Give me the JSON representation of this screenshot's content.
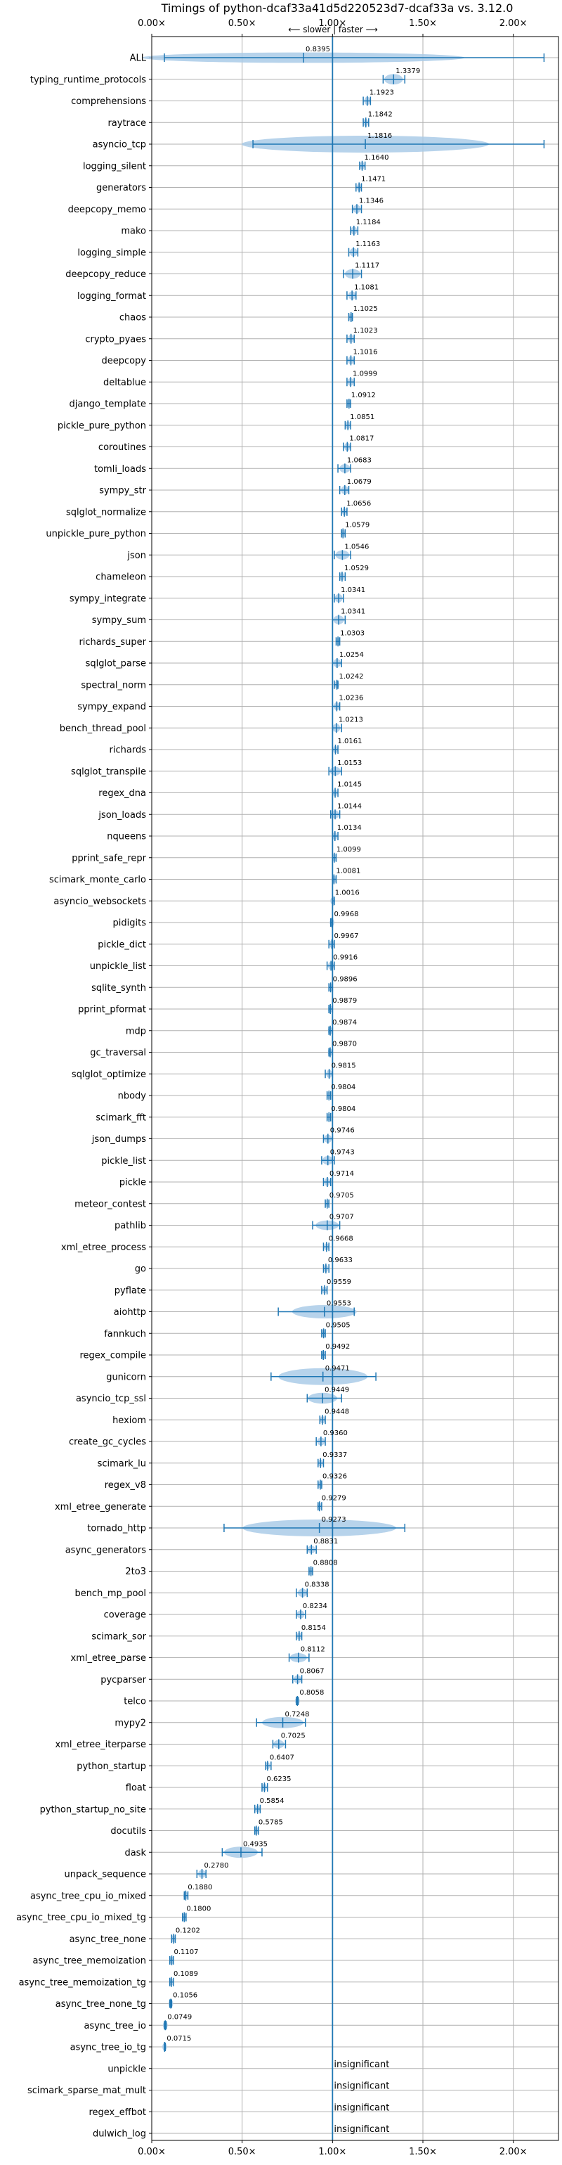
{
  "chart_data": {
    "type": "violin",
    "title": "Timings of python-dcaf33a41d5d220523d7-dcaf33a vs. 3.12.0",
    "subtitle": "⟵ slower | faster ⟶",
    "xlim": [
      0,
      2.25
    ],
    "xticks": [
      0,
      0.5,
      1.0,
      1.5,
      2.0
    ],
    "xtick_labels": [
      "0.00×",
      "0.50×",
      "1.00×",
      "1.50×",
      "2.00×"
    ],
    "reference_line": 1.0,
    "grid": true,
    "colors": {
      "violin": "#aacbe8",
      "line": "#1f77b4",
      "grid": "#b0b0b0",
      "median": "#d62728"
    },
    "benchmarks": [
      {
        "name": "ALL",
        "value": 0.8395,
        "label": "0.8395",
        "min": 0.07,
        "max": 2.17,
        "spread": 0.08
      },
      {
        "name": "typing_runtime_protocols",
        "value": 1.3379,
        "label": "1.3379",
        "min": 1.28,
        "max": 1.4,
        "spread": 0.08
      },
      {
        "name": "comprehensions",
        "value": 1.1923,
        "label": "1.1923",
        "min": 1.17,
        "max": 1.21,
        "spread": 0.03
      },
      {
        "name": "raytrace",
        "value": 1.1842,
        "label": "1.1842",
        "min": 1.17,
        "max": 1.2,
        "spread": 0.02
      },
      {
        "name": "asyncio_tcp",
        "value": 1.1816,
        "label": "1.1816",
        "min": 0.56,
        "max": 2.17,
        "spread": 0.55
      },
      {
        "name": "logging_silent",
        "value": 1.164,
        "label": "1.1640",
        "min": 1.15,
        "max": 1.18,
        "spread": 0.02
      },
      {
        "name": "generators",
        "value": 1.1471,
        "label": "1.1471",
        "min": 1.13,
        "max": 1.16,
        "spread": 0.02
      },
      {
        "name": "deepcopy_memo",
        "value": 1.1346,
        "label": "1.1346",
        "min": 1.11,
        "max": 1.16,
        "spread": 0.03
      },
      {
        "name": "mako",
        "value": 1.1184,
        "label": "1.1184",
        "min": 1.1,
        "max": 1.14,
        "spread": 0.03
      },
      {
        "name": "logging_simple",
        "value": 1.1163,
        "label": "1.1163",
        "min": 1.09,
        "max": 1.14,
        "spread": 0.03
      },
      {
        "name": "deepcopy_reduce",
        "value": 1.1117,
        "label": "1.1117",
        "min": 1.06,
        "max": 1.16,
        "spread": 0.06
      },
      {
        "name": "logging_format",
        "value": 1.1081,
        "label": "1.1081",
        "min": 1.08,
        "max": 1.13,
        "spread": 0.03
      },
      {
        "name": "chaos",
        "value": 1.1025,
        "label": "1.1025",
        "min": 1.09,
        "max": 1.11,
        "spread": 0.01
      },
      {
        "name": "crypto_pyaes",
        "value": 1.1023,
        "label": "1.1023",
        "min": 1.08,
        "max": 1.12,
        "spread": 0.02
      },
      {
        "name": "deepcopy",
        "value": 1.1016,
        "label": "1.1016",
        "min": 1.08,
        "max": 1.12,
        "spread": 0.02
      },
      {
        "name": "deltablue",
        "value": 1.0999,
        "label": "1.0999",
        "min": 1.08,
        "max": 1.12,
        "spread": 0.02
      },
      {
        "name": "django_template",
        "value": 1.0912,
        "label": "1.0912",
        "min": 1.08,
        "max": 1.1,
        "spread": 0.02
      },
      {
        "name": "pickle_pure_python",
        "value": 1.0851,
        "label": "1.0851",
        "min": 1.07,
        "max": 1.1,
        "spread": 0.02
      },
      {
        "name": "coroutines",
        "value": 1.0817,
        "label": "1.0817",
        "min": 1.06,
        "max": 1.1,
        "spread": 0.02
      },
      {
        "name": "tomli_loads",
        "value": 1.0683,
        "label": "1.0683",
        "min": 1.03,
        "max": 1.1,
        "spread": 0.04
      },
      {
        "name": "sympy_str",
        "value": 1.0679,
        "label": "1.0679",
        "min": 1.04,
        "max": 1.09,
        "spread": 0.03
      },
      {
        "name": "sqlglot_normalize",
        "value": 1.0656,
        "label": "1.0656",
        "min": 1.05,
        "max": 1.08,
        "spread": 0.01
      },
      {
        "name": "unpickle_pure_python",
        "value": 1.0579,
        "label": "1.0579",
        "min": 1.05,
        "max": 1.07,
        "spread": 0.01
      },
      {
        "name": "json",
        "value": 1.0546,
        "label": "1.0546",
        "min": 1.01,
        "max": 1.1,
        "spread": 0.05
      },
      {
        "name": "chameleon",
        "value": 1.0529,
        "label": "1.0529",
        "min": 1.04,
        "max": 1.07,
        "spread": 0.02
      },
      {
        "name": "sympy_integrate",
        "value": 1.0341,
        "label": "1.0341",
        "min": 1.01,
        "max": 1.06,
        "spread": 0.03
      },
      {
        "name": "sympy_sum",
        "value": 1.0341,
        "label": "1.0341",
        "min": 1.0,
        "max": 1.07,
        "spread": 0.04
      },
      {
        "name": "richards_super",
        "value": 1.0303,
        "label": "1.0303",
        "min": 1.02,
        "max": 1.04,
        "spread": 0.01
      },
      {
        "name": "sqlglot_parse",
        "value": 1.0254,
        "label": "1.0254",
        "min": 1.0,
        "max": 1.05,
        "spread": 0.03
      },
      {
        "name": "spectral_norm",
        "value": 1.0242,
        "label": "1.0242",
        "min": 1.01,
        "max": 1.03,
        "spread": 0.01
      },
      {
        "name": "sympy_expand",
        "value": 1.0236,
        "label": "1.0236",
        "min": 1.0,
        "max": 1.04,
        "spread": 0.02
      },
      {
        "name": "bench_thread_pool",
        "value": 1.0213,
        "label": "1.0213",
        "min": 1.0,
        "max": 1.05,
        "spread": 0.03
      },
      {
        "name": "richards",
        "value": 1.0161,
        "label": "1.0161",
        "min": 1.0,
        "max": 1.03,
        "spread": 0.01
      },
      {
        "name": "sqlglot_transpile",
        "value": 1.0153,
        "label": "1.0153",
        "min": 0.98,
        "max": 1.05,
        "spread": 0.04
      },
      {
        "name": "regex_dna",
        "value": 1.0145,
        "label": "1.0145",
        "min": 1.0,
        "max": 1.03,
        "spread": 0.01
      },
      {
        "name": "json_loads",
        "value": 1.0144,
        "label": "1.0144",
        "min": 0.99,
        "max": 1.04,
        "spread": 0.03
      },
      {
        "name": "nqueens",
        "value": 1.0134,
        "label": "1.0134",
        "min": 1.0,
        "max": 1.03,
        "spread": 0.02
      },
      {
        "name": "pprint_safe_repr",
        "value": 1.0099,
        "label": "1.0099",
        "min": 1.0,
        "max": 1.02,
        "spread": 0.01
      },
      {
        "name": "scimark_monte_carlo",
        "value": 1.0081,
        "label": "1.0081",
        "min": 1.0,
        "max": 1.02,
        "spread": 0.01
      },
      {
        "name": "asyncio_websockets",
        "value": 1.0016,
        "label": "1.0016",
        "min": 1.0,
        "max": 1.01,
        "spread": 0.005
      },
      {
        "name": "pidigits",
        "value": 0.9968,
        "label": "0.9968",
        "min": 0.99,
        "max": 1.0,
        "spread": 0.01
      },
      {
        "name": "pickle_dict",
        "value": 0.9967,
        "label": "0.9967",
        "min": 0.98,
        "max": 1.01,
        "spread": 0.02
      },
      {
        "name": "unpickle_list",
        "value": 0.9916,
        "label": "0.9916",
        "min": 0.97,
        "max": 1.01,
        "spread": 0.02
      },
      {
        "name": "sqlite_synth",
        "value": 0.9896,
        "label": "0.9896",
        "min": 0.98,
        "max": 1.0,
        "spread": 0.01
      },
      {
        "name": "pprint_pformat",
        "value": 0.9879,
        "label": "0.9879",
        "min": 0.98,
        "max": 1.0,
        "spread": 0.01
      },
      {
        "name": "mdp",
        "value": 0.9874,
        "label": "0.9874",
        "min": 0.98,
        "max": 1.0,
        "spread": 0.01
      },
      {
        "name": "gc_traversal",
        "value": 0.987,
        "label": "0.9870",
        "min": 0.98,
        "max": 1.0,
        "spread": 0.01
      },
      {
        "name": "sqlglot_optimize",
        "value": 0.9815,
        "label": "0.9815",
        "min": 0.96,
        "max": 1.0,
        "spread": 0.02
      },
      {
        "name": "nbody",
        "value": 0.9804,
        "label": "0.9804",
        "min": 0.97,
        "max": 0.99,
        "spread": 0.01
      },
      {
        "name": "scimark_fft",
        "value": 0.9804,
        "label": "0.9804",
        "min": 0.97,
        "max": 0.99,
        "spread": 0.01
      },
      {
        "name": "json_dumps",
        "value": 0.9746,
        "label": "0.9746",
        "min": 0.95,
        "max": 1.0,
        "spread": 0.03
      },
      {
        "name": "pickle_list",
        "value": 0.9743,
        "label": "0.9743",
        "min": 0.94,
        "max": 1.01,
        "spread": 0.04
      },
      {
        "name": "pickle",
        "value": 0.9714,
        "label": "0.9714",
        "min": 0.95,
        "max": 0.99,
        "spread": 0.02
      },
      {
        "name": "meteor_contest",
        "value": 0.9705,
        "label": "0.9705",
        "min": 0.96,
        "max": 0.98,
        "spread": 0.01
      },
      {
        "name": "pathlib",
        "value": 0.9707,
        "label": "0.9707",
        "min": 0.89,
        "max": 1.04,
        "spread": 0.06
      },
      {
        "name": "xml_etree_process",
        "value": 0.9668,
        "label": "0.9668",
        "min": 0.95,
        "max": 0.98,
        "spread": 0.01
      },
      {
        "name": "go",
        "value": 0.9633,
        "label": "0.9633",
        "min": 0.95,
        "max": 0.98,
        "spread": 0.01
      },
      {
        "name": "pyflate",
        "value": 0.9559,
        "label": "0.9559",
        "min": 0.94,
        "max": 0.97,
        "spread": 0.01
      },
      {
        "name": "aiohttp",
        "value": 0.9553,
        "label": "0.9553",
        "min": 0.7,
        "max": 1.12,
        "spread": 0.15
      },
      {
        "name": "fannkuch",
        "value": 0.9505,
        "label": "0.9505",
        "min": 0.94,
        "max": 0.96,
        "spread": 0.01
      },
      {
        "name": "regex_compile",
        "value": 0.9492,
        "label": "0.9492",
        "min": 0.94,
        "max": 0.96,
        "spread": 0.01
      },
      {
        "name": "gunicorn",
        "value": 0.9471,
        "label": "0.9471",
        "min": 0.66,
        "max": 1.24,
        "spread": 0.25
      },
      {
        "name": "asyncio_tcp_ssl",
        "value": 0.9449,
        "label": "0.9449",
        "min": 0.86,
        "max": 1.05,
        "spread": 0.09
      },
      {
        "name": "hexiom",
        "value": 0.9448,
        "label": "0.9448",
        "min": 0.93,
        "max": 0.96,
        "spread": 0.01
      },
      {
        "name": "create_gc_cycles",
        "value": 0.936,
        "label": "0.9360",
        "min": 0.91,
        "max": 0.96,
        "spread": 0.02
      },
      {
        "name": "scimark_lu",
        "value": 0.9337,
        "label": "0.9337",
        "min": 0.92,
        "max": 0.95,
        "spread": 0.01
      },
      {
        "name": "regex_v8",
        "value": 0.9326,
        "label": "0.9326",
        "min": 0.92,
        "max": 0.94,
        "spread": 0.01
      },
      {
        "name": "xml_etree_generate",
        "value": 0.9279,
        "label": "0.9279",
        "min": 0.92,
        "max": 0.94,
        "spread": 0.01
      },
      {
        "name": "tornado_http",
        "value": 0.9273,
        "label": "0.9273",
        "min": 0.4,
        "max": 1.4,
        "spread": 0.3
      },
      {
        "name": "async_generators",
        "value": 0.8831,
        "label": "0.8831",
        "min": 0.86,
        "max": 0.91,
        "spread": 0.02
      },
      {
        "name": "2to3",
        "value": 0.8808,
        "label": "0.8808",
        "min": 0.87,
        "max": 0.89,
        "spread": 0.01
      },
      {
        "name": "bench_mp_pool",
        "value": 0.8338,
        "label": "0.8338",
        "min": 0.8,
        "max": 0.86,
        "spread": 0.03
      },
      {
        "name": "coverage",
        "value": 0.8234,
        "label": "0.8234",
        "min": 0.8,
        "max": 0.85,
        "spread": 0.02
      },
      {
        "name": "scimark_sor",
        "value": 0.8154,
        "label": "0.8154",
        "min": 0.8,
        "max": 0.83,
        "spread": 0.01
      },
      {
        "name": "xml_etree_parse",
        "value": 0.8112,
        "label": "0.8112",
        "min": 0.76,
        "max": 0.87,
        "spread": 0.05
      },
      {
        "name": "pycparser",
        "value": 0.8067,
        "label": "0.8067",
        "min": 0.78,
        "max": 0.83,
        "spread": 0.02
      },
      {
        "name": "telco",
        "value": 0.8058,
        "label": "0.8058",
        "min": 0.8,
        "max": 0.81,
        "spread": 0.005
      },
      {
        "name": "mypy2",
        "value": 0.7248,
        "label": "0.7248",
        "min": 0.58,
        "max": 0.85,
        "spread": 0.1
      },
      {
        "name": "xml_etree_iterparse",
        "value": 0.7025,
        "label": "0.7025",
        "min": 0.67,
        "max": 0.74,
        "spread": 0.03
      },
      {
        "name": "python_startup",
        "value": 0.6407,
        "label": "0.6407",
        "min": 0.63,
        "max": 0.66,
        "spread": 0.01
      },
      {
        "name": "float",
        "value": 0.6235,
        "label": "0.6235",
        "min": 0.61,
        "max": 0.64,
        "spread": 0.01
      },
      {
        "name": "python_startup_no_site",
        "value": 0.5854,
        "label": "0.5854",
        "min": 0.57,
        "max": 0.6,
        "spread": 0.01
      },
      {
        "name": "docutils",
        "value": 0.5785,
        "label": "0.5785",
        "min": 0.57,
        "max": 0.59,
        "spread": 0.01
      },
      {
        "name": "dask",
        "value": 0.4935,
        "label": "0.4935",
        "min": 0.39,
        "max": 0.61,
        "spread": 0.1
      },
      {
        "name": "unpack_sequence",
        "value": 0.278,
        "label": "0.2780",
        "min": 0.25,
        "max": 0.3,
        "spread": 0.02
      },
      {
        "name": "async_tree_cpu_io_mixed",
        "value": 0.188,
        "label": "0.1880",
        "min": 0.18,
        "max": 0.2,
        "spread": 0.01
      },
      {
        "name": "async_tree_cpu_io_mixed_tg",
        "value": 0.18,
        "label": "0.1800",
        "min": 0.17,
        "max": 0.19,
        "spread": 0.01
      },
      {
        "name": "async_tree_none",
        "value": 0.1202,
        "label": "0.1202",
        "min": 0.11,
        "max": 0.13,
        "spread": 0.005
      },
      {
        "name": "async_tree_memoization",
        "value": 0.1107,
        "label": "0.1107",
        "min": 0.1,
        "max": 0.12,
        "spread": 0.005
      },
      {
        "name": "async_tree_memoization_tg",
        "value": 0.1089,
        "label": "0.1089",
        "min": 0.1,
        "max": 0.12,
        "spread": 0.005
      },
      {
        "name": "async_tree_none_tg",
        "value": 0.1056,
        "label": "0.1056",
        "min": 0.1,
        "max": 0.11,
        "spread": 0.005
      },
      {
        "name": "async_tree_io",
        "value": 0.0749,
        "label": "0.0749",
        "min": 0.07,
        "max": 0.08,
        "spread": 0.003
      },
      {
        "name": "async_tree_io_tg",
        "value": 0.0715,
        "label": "0.0715",
        "min": 0.07,
        "max": 0.075,
        "spread": 0.003
      },
      {
        "name": "unpickle",
        "value": null,
        "label": "insignificant"
      },
      {
        "name": "scimark_sparse_mat_mult",
        "value": null,
        "label": "insignificant"
      },
      {
        "name": "regex_effbot",
        "value": null,
        "label": "insignificant"
      },
      {
        "name": "dulwich_log",
        "value": null,
        "label": "insignificant"
      }
    ]
  }
}
